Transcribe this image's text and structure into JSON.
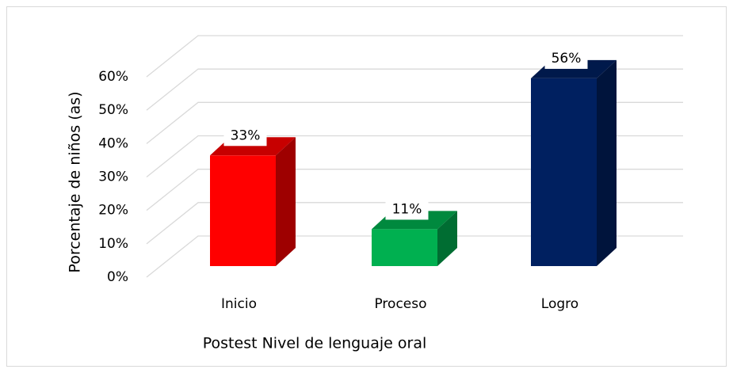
{
  "chart_data": {
    "type": "bar3d",
    "x_label": "Postest Nivel de lenguaje oral",
    "y_label": "Porcentaje de niños (as)",
    "categories": [
      "Inicio",
      "Proceso",
      "Logro"
    ],
    "values": [
      33,
      11,
      56
    ],
    "value_labels": [
      "33%",
      "11%",
      "56%"
    ],
    "colors": [
      "#ff0000",
      "#00b050",
      "#002060"
    ],
    "ylim": [
      0,
      60
    ],
    "yticks": [
      {
        "value": 0,
        "label": "0%"
      },
      {
        "value": 10,
        "label": "10%"
      },
      {
        "value": 20,
        "label": "20%"
      },
      {
        "value": 30,
        "label": "30%"
      },
      {
        "value": 40,
        "label": "40%"
      },
      {
        "value": 50,
        "label": "50%"
      },
      {
        "value": 60,
        "label": "60%"
      }
    ],
    "grid": true
  }
}
